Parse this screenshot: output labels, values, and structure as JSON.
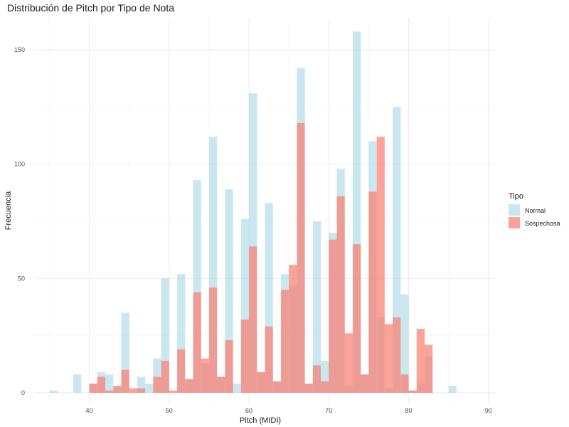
{
  "chart_data": {
    "type": "bar",
    "title": "Distribución de Pitch por Tipo de Nota",
    "xlabel": "Pitch (MIDI)",
    "ylabel": "Frecuencia",
    "xlim": [
      33,
      91
    ],
    "ylim": [
      -5,
      164
    ],
    "xticks": [
      40,
      50,
      60,
      70,
      80,
      90
    ],
    "yticks": [
      0,
      50,
      100,
      150
    ],
    "bin_width": 1,
    "grid": true,
    "legend": {
      "title": "Tipo",
      "position": "right"
    },
    "series": [
      {
        "name": "Normal",
        "color": "#add8e6",
        "opacity": 0.65,
        "bins": [
          {
            "x": 35,
            "y": 1
          },
          {
            "x": 38,
            "y": 8
          },
          {
            "x": 40,
            "y": 4
          },
          {
            "x": 41,
            "y": 9
          },
          {
            "x": 42,
            "y": 8
          },
          {
            "x": 43,
            "y": 3
          },
          {
            "x": 44,
            "y": 35
          },
          {
            "x": 46,
            "y": 7
          },
          {
            "x": 47,
            "y": 4
          },
          {
            "x": 48,
            "y": 15
          },
          {
            "x": 49,
            "y": 50
          },
          {
            "x": 51,
            "y": 52
          },
          {
            "x": 52,
            "y": 6
          },
          {
            "x": 53,
            "y": 93
          },
          {
            "x": 54,
            "y": 13
          },
          {
            "x": 55,
            "y": 112
          },
          {
            "x": 56,
            "y": 7
          },
          {
            "x": 57,
            "y": 89
          },
          {
            "x": 58,
            "y": 4
          },
          {
            "x": 59,
            "y": 76
          },
          {
            "x": 60,
            "y": 131
          },
          {
            "x": 61,
            "y": 9
          },
          {
            "x": 62,
            "y": 83
          },
          {
            "x": 63,
            "y": 5
          },
          {
            "x": 64,
            "y": 52
          },
          {
            "x": 65,
            "y": 47
          },
          {
            "x": 66,
            "y": 142
          },
          {
            "x": 67,
            "y": 4
          },
          {
            "x": 68,
            "y": 75
          },
          {
            "x": 69,
            "y": 14
          },
          {
            "x": 70,
            "y": 70
          },
          {
            "x": 71,
            "y": 98
          },
          {
            "x": 72,
            "y": 3
          },
          {
            "x": 73,
            "y": 158
          },
          {
            "x": 74,
            "y": 8
          },
          {
            "x": 75,
            "y": 110
          },
          {
            "x": 76,
            "y": 33
          },
          {
            "x": 77,
            "y": 2
          },
          {
            "x": 78,
            "y": 125
          },
          {
            "x": 79,
            "y": 43
          },
          {
            "x": 80,
            "y": 1
          },
          {
            "x": 81,
            "y": 4
          },
          {
            "x": 82,
            "y": 16
          },
          {
            "x": 85,
            "y": 3
          }
        ]
      },
      {
        "name": "Sospechosa",
        "color": "#fa8072",
        "opacity": 0.72,
        "bins": [
          {
            "x": 40,
            "y": 4
          },
          {
            "x": 41,
            "y": 7
          },
          {
            "x": 42,
            "y": 1
          },
          {
            "x": 43,
            "y": 3
          },
          {
            "x": 44,
            "y": 10
          },
          {
            "x": 45,
            "y": 2
          },
          {
            "x": 46,
            "y": 2
          },
          {
            "x": 48,
            "y": 7
          },
          {
            "x": 49,
            "y": 14
          },
          {
            "x": 50,
            "y": 1
          },
          {
            "x": 51,
            "y": 19
          },
          {
            "x": 52,
            "y": 6
          },
          {
            "x": 53,
            "y": 44
          },
          {
            "x": 54,
            "y": 15
          },
          {
            "x": 55,
            "y": 46
          },
          {
            "x": 56,
            "y": 7
          },
          {
            "x": 57,
            "y": 23
          },
          {
            "x": 59,
            "y": 32
          },
          {
            "x": 60,
            "y": 64
          },
          {
            "x": 61,
            "y": 9
          },
          {
            "x": 62,
            "y": 29
          },
          {
            "x": 63,
            "y": 5
          },
          {
            "x": 64,
            "y": 45
          },
          {
            "x": 65,
            "y": 56
          },
          {
            "x": 66,
            "y": 118
          },
          {
            "x": 67,
            "y": 4
          },
          {
            "x": 68,
            "y": 12
          },
          {
            "x": 69,
            "y": 5
          },
          {
            "x": 70,
            "y": 67
          },
          {
            "x": 71,
            "y": 86
          },
          {
            "x": 72,
            "y": 26
          },
          {
            "x": 73,
            "y": 65
          },
          {
            "x": 74,
            "y": 8
          },
          {
            "x": 75,
            "y": 88
          },
          {
            "x": 76,
            "y": 112
          },
          {
            "x": 77,
            "y": 30
          },
          {
            "x": 78,
            "y": 33
          },
          {
            "x": 79,
            "y": 8
          },
          {
            "x": 80,
            "y": 1
          },
          {
            "x": 81,
            "y": 28
          },
          {
            "x": 82,
            "y": 21
          }
        ]
      }
    ]
  }
}
